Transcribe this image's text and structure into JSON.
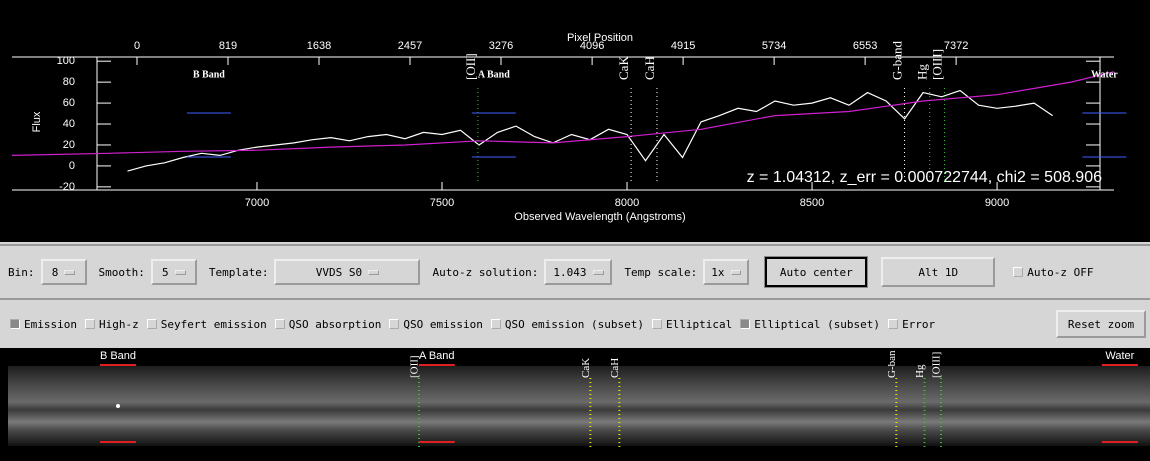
{
  "chart_data": {
    "type": "line",
    "x2_label": "Pixel Position",
    "y_label": "Flux",
    "x_label": "Observed Wavelength (Angstroms)",
    "xlim": [
      6338,
      9316
    ],
    "xticks": [
      7000,
      7500,
      8000,
      8500,
      9000
    ],
    "x2lim": [
      -1125,
      8793
    ],
    "x2ticks": [
      0,
      819,
      1638,
      2457,
      3276,
      4096,
      4915,
      5734,
      6553,
      7372
    ],
    "ylim": [
      -23,
      104
    ],
    "yticks": [
      -20,
      0,
      20,
      40,
      60,
      80,
      100
    ],
    "series": [
      {
        "color": "#ffffff",
        "x": [
          6650,
          6700,
          6750,
          6800,
          6850,
          6900,
          6950,
          7000,
          7050,
          7100,
          7150,
          7200,
          7250,
          7300,
          7350,
          7400,
          7450,
          7500,
          7550,
          7600,
          7650,
          7700,
          7750,
          7800,
          7850,
          7900,
          7950,
          8000,
          8050,
          8100,
          8150,
          8200,
          8250,
          8300,
          8350,
          8400,
          8450,
          8500,
          8550,
          8600,
          8650,
          8700,
          8750,
          8800,
          8850,
          8900,
          8950,
          9000,
          9050,
          9100,
          9150
        ],
        "values": [
          -5,
          0,
          3,
          8,
          12,
          10,
          15,
          18,
          20,
          22,
          25,
          27,
          24,
          28,
          30,
          26,
          32,
          30,
          34,
          20,
          32,
          38,
          28,
          22,
          30,
          25,
          35,
          30,
          5,
          30,
          8,
          42,
          48,
          55,
          52,
          62,
          58,
          60,
          65,
          58,
          70,
          62,
          45,
          70,
          66,
          72,
          58,
          55,
          57,
          60,
          48
        ]
      },
      {
        "color": "#d020d0",
        "x": [
          6338,
          6600,
          6800,
          7000,
          7200,
          7400,
          7600,
          7800,
          8000,
          8200,
          8400,
          8600,
          8800,
          9000,
          9200,
          9316
        ],
        "values": [
          10,
          12,
          14,
          15,
          18,
          20,
          24,
          22,
          28,
          35,
          48,
          52,
          62,
          68,
          80,
          90
        ]
      }
    ],
    "lines": [
      {
        "label": "B Band",
        "wavelength": 6870,
        "color": "#4060ff",
        "rotated": false
      },
      {
        "label": "[OII]",
        "wavelength": 7597,
        "color": "#30c030",
        "rotated": true
      },
      {
        "label": "A Band",
        "wavelength": 7640,
        "color": "#4060ff",
        "rotated": false
      },
      {
        "label": "CaK",
        "wavelength": 8011,
        "color": "#ffffff",
        "rotated": true
      },
      {
        "label": "CaH",
        "wavelength": 8081,
        "color": "#ffffff",
        "rotated": true
      },
      {
        "label": "G-band",
        "wavelength": 8750,
        "color": "#ffffff",
        "rotated": true
      },
      {
        "label": "Hg",
        "wavelength": 8818,
        "color": "#30c030",
        "rotated": true
      },
      {
        "label": "[OIII]",
        "wavelength": 8858,
        "color": "#30c030",
        "rotated": true
      },
      {
        "label": "Water",
        "wavelength": 9290,
        "color": "#4060ff",
        "rotated": false
      }
    ],
    "annotation": "z = 1.04312, z_err = 0.000722744, chi2 = 508.906"
  },
  "controls": {
    "bin": {
      "label": "Bin:",
      "value": "8"
    },
    "smooth": {
      "label": "Smooth:",
      "value": "5"
    },
    "template": {
      "label": "Template:",
      "value": "VVDS S0"
    },
    "autoz": {
      "label": "Auto-z solution:",
      "value": "1.043"
    },
    "tempscale": {
      "label": "Temp scale:",
      "value": "1x"
    },
    "auto_center": "Auto center",
    "alt1d": "Alt 1D",
    "autoz_off": {
      "label": "Auto-z OFF",
      "checked": false
    }
  },
  "filters": [
    {
      "label": "Emission",
      "checked": true
    },
    {
      "label": "High-z",
      "checked": false
    },
    {
      "label": "Seyfert emission",
      "checked": false
    },
    {
      "label": "QSO absorption",
      "checked": false
    },
    {
      "label": "QSO emission",
      "checked": false
    },
    {
      "label": "QSO emission (subset)",
      "checked": false
    },
    {
      "label": "Elliptical",
      "checked": false
    },
    {
      "label": "Elliptical (subset)",
      "checked": true
    },
    {
      "label": "Error",
      "checked": false
    }
  ],
  "reset_zoom": "Reset zoom",
  "image2d": {
    "labels": [
      "B Band",
      "[OII]",
      "A Band",
      "CaK",
      "CaH",
      "G-ban",
      "Hg",
      "[OIII]",
      "Water"
    ]
  }
}
